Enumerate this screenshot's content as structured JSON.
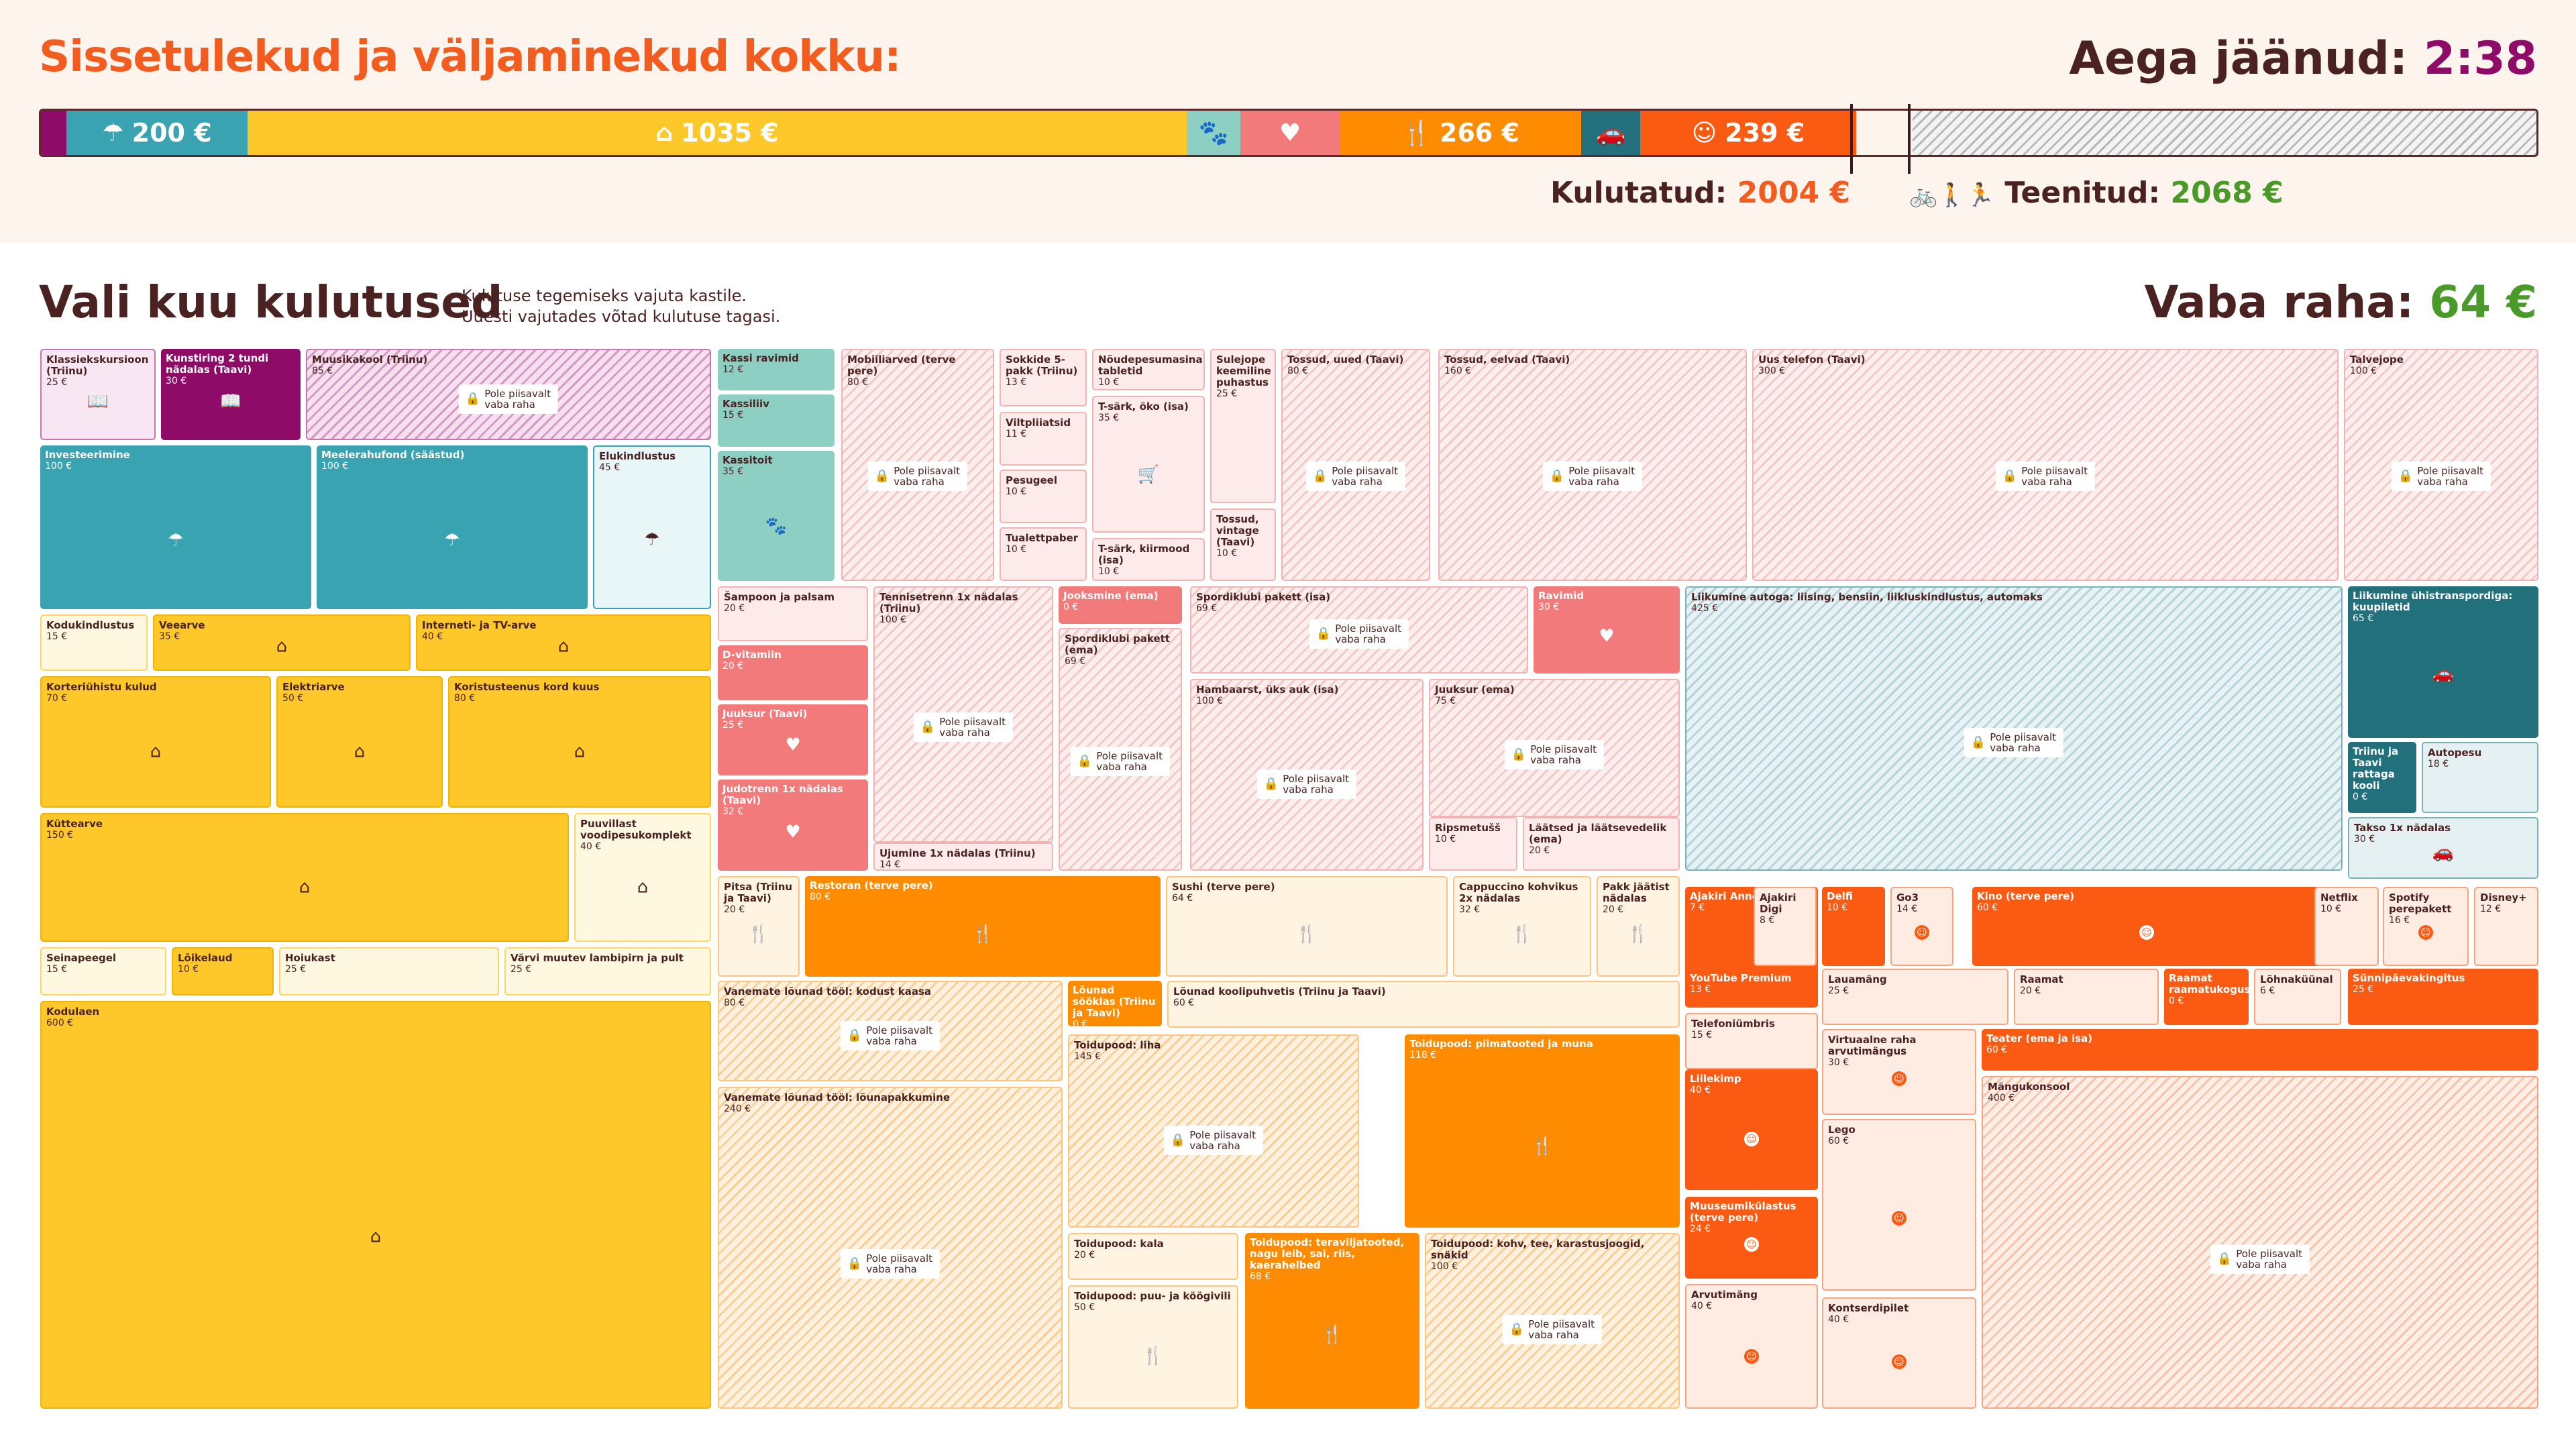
{
  "header": {
    "title": "Sissetulekud ja väljaminekud kokku:",
    "timer_label": "Aega jäänud:",
    "timer_value": "2:38",
    "spent_label": "Kulutatud:",
    "spent_value": "2004 €",
    "earned_label": "Teenitud:",
    "earned_value": "2068 €",
    "earned_icons": "🚲🚶🏃"
  },
  "budget_bar": [
    {
      "label": "",
      "icon": "",
      "color": "#8e0b67"
    },
    {
      "label": "200 €",
      "icon": "☂",
      "color": "#3aa3b2"
    },
    {
      "label": "1035 €",
      "icon": "⌂",
      "color": "#ffc82a"
    },
    {
      "label": "",
      "icon": "🐾",
      "color": "#8ecfc4"
    },
    {
      "label": "",
      "icon": "♥",
      "color": "#f37a7a"
    },
    {
      "label": "266 €",
      "icon": "🍴",
      "color": "#ff8c00"
    },
    {
      "label": "",
      "icon": "🚗",
      "color": "#21707c"
    },
    {
      "label": "239 €",
      "icon": "☺",
      "color": "#fb5a12"
    }
  ],
  "section": {
    "title": "Vali kuu kulutused",
    "hint_line1": "Kulutuse tegemiseks vajuta kastile.",
    "hint_line2": "Uuesti vajutades võtad kulutuse tagasi.",
    "free_label": "Vaba raha:",
    "free_value": "64 €"
  },
  "lock_text": "Pole piisavalt vaba raha",
  "colors": {
    "accent": "#f25c1f",
    "timer": "#8e0b67",
    "earned": "#4a9a2a",
    "text": "#4a2222"
  },
  "tiles": [
    {
      "n": "Klassiekskursioon (Triinu)",
      "p": "25 €",
      "c": "v-ed-l",
      "i": "📖"
    },
    {
      "n": "Kunstiring 2 tundi nädalas (Taavi)",
      "p": "30 €",
      "c": "v-ed",
      "i": "📖"
    },
    {
      "n": "Muusikakool (Triinu)",
      "p": "85 €",
      "c": "v-ed-h",
      "i": ""
    },
    {
      "n": "Investeerimine",
      "p": "100 €",
      "c": "v-sa",
      "i": "☂"
    },
    {
      "n": "Meelerahufond (säästud)",
      "p": "100 €",
      "c": "v-sa",
      "i": "☂"
    },
    {
      "n": "Elukindlustus",
      "p": "45 €",
      "c": "v-sa-l",
      "i": "☂"
    },
    {
      "n": "Kodukindlustus",
      "p": "15 €",
      "c": "v-ko-l",
      "i": ""
    },
    {
      "n": "Veearve",
      "p": "35 €",
      "c": "v-ko",
      "i": "⌂"
    },
    {
      "n": "Interneti- ja TV-arve",
      "p": "40 €",
      "c": "v-ko",
      "i": "⌂"
    },
    {
      "n": "Korteriühistu kulud",
      "p": "70 €",
      "c": "v-ko",
      "i": "⌂"
    },
    {
      "n": "Elektriarve",
      "p": "50 €",
      "c": "v-ko",
      "i": "⌂"
    },
    {
      "n": "Koristusteenus kord kuus",
      "p": "80 €",
      "c": "v-ko",
      "i": "⌂"
    },
    {
      "n": "Küttearve",
      "p": "150 €",
      "c": "v-ko",
      "i": "⌂"
    },
    {
      "n": "Puuvillast voodipesukomplekt",
      "p": "40 €",
      "c": "v-ko-l",
      "i": "⌂"
    },
    {
      "n": "Seinapeegel",
      "p": "15 €",
      "c": "v-ko-l",
      "i": ""
    },
    {
      "n": "Lõikelaud",
      "p": "10 €",
      "c": "v-ko",
      "i": ""
    },
    {
      "n": "Hoiukast",
      "p": "25 €",
      "c": "v-ko-l",
      "i": ""
    },
    {
      "n": "Värvi muutev lambipirn ja pult",
      "p": "25 €",
      "c": "v-ko-l",
      "i": ""
    },
    {
      "n": "Kodulaen",
      "p": "600 €",
      "c": "v-ko",
      "i": "⌂"
    },
    {
      "n": "Kassi ravimid",
      "p": "12 €",
      "c": "v-lo",
      "i": ""
    },
    {
      "n": "Kassiliiv",
      "p": "15 €",
      "c": "v-lo",
      "i": ""
    },
    {
      "n": "Kassitoit",
      "p": "35 €",
      "c": "v-lo",
      "i": "🐾"
    },
    {
      "n": "Mobiiliarved (terve pere)",
      "p": "80 €",
      "c": "v-te-h",
      "i": ""
    },
    {
      "n": "Sokkide 5-pakk (Triinu)",
      "p": "13 €",
      "c": "v-te-l",
      "i": ""
    },
    {
      "n": "Viltpliiatsid",
      "p": "11 €",
      "c": "v-te-l",
      "i": ""
    },
    {
      "n": "Pesugeel",
      "p": "10 €",
      "c": "v-te-l",
      "i": ""
    },
    {
      "n": "Tualettpaber",
      "p": "10 €",
      "c": "v-te-l",
      "i": ""
    },
    {
      "n": "Nõudepesumasina tabletid",
      "p": "10 €",
      "c": "v-te-l",
      "i": ""
    },
    {
      "n": "T-särk, öko (isa)",
      "p": "35 €",
      "c": "v-te-l",
      "i": "🛒"
    },
    {
      "n": "T-särk, kiirmood (isa)",
      "p": "10 €",
      "c": "v-te-l",
      "i": ""
    },
    {
      "n": "Sulejope keemiline puhastus",
      "p": "25 €",
      "c": "v-te-l",
      "i": ""
    },
    {
      "n": "Tossud, vintage (Taavi)",
      "p": "10 €",
      "c": "v-te-l",
      "i": ""
    },
    {
      "n": "Tossud, uued (Taavi)",
      "p": "80 €",
      "c": "v-te-h",
      "i": ""
    },
    {
      "n": "Tossud, eelvad (Taavi)",
      "p": "160 €",
      "c": "v-te-h",
      "i": ""
    },
    {
      "n": "Uus telefon (Taavi)",
      "p": "300 €",
      "c": "v-te-h",
      "i": ""
    },
    {
      "n": "Talvejope",
      "p": "100 €",
      "c": "v-te-h",
      "i": ""
    },
    {
      "n": "Šampoon ja palsam",
      "p": "20 €",
      "c": "v-te-l",
      "i": ""
    },
    {
      "n": "D-vitamiin",
      "p": "20 €",
      "c": "v-te",
      "i": ""
    },
    {
      "n": "Juuksur (Taavi)",
      "p": "25 €",
      "c": "v-te",
      "i": "♥"
    },
    {
      "n": "Judotrenn 1x nädalas (Taavi)",
      "p": "32 €",
      "c": "v-te",
      "i": "♥"
    },
    {
      "n": "Tennisetrenn 1x nädalas (Triinu)",
      "p": "100 €",
      "c": "v-te-h",
      "i": ""
    },
    {
      "n": "Ujumine 1x nädalas (Triinu)",
      "p": "14 €",
      "c": "v-te-l",
      "i": ""
    },
    {
      "n": "Jooksmine (ema)",
      "p": "0 €",
      "c": "v-te",
      "i": ""
    },
    {
      "n": "Spordiklubi pakett (ema)",
      "p": "69 €",
      "c": "v-te-h",
      "i": ""
    },
    {
      "n": "Spordiklubi pakett (isa)",
      "p": "69 €",
      "c": "v-te-h",
      "i": ""
    },
    {
      "n": "Ravimid",
      "p": "30 €",
      "c": "v-te",
      "i": "♥"
    },
    {
      "n": "Hambaarst, üks auk (isa)",
      "p": "100 €",
      "c": "v-te-h",
      "i": ""
    },
    {
      "n": "Juuksur (ema)",
      "p": "75 €",
      "c": "v-te-h",
      "i": ""
    },
    {
      "n": "Ripsmetušš",
      "p": "10 €",
      "c": "v-te-l",
      "i": ""
    },
    {
      "n": "Läätsed ja läätsevedelik (ema)",
      "p": "20 €",
      "c": "v-te-l",
      "i": ""
    },
    {
      "n": "Liikumine autoga: liising, bensiin, liikluskindlustus, automaks",
      "p": "425 €",
      "c": "v-tr-h",
      "i": ""
    },
    {
      "n": "Liikumine ühistranspordiga: kuupiletid",
      "p": "65 €",
      "c": "v-tr",
      "i": "🚗"
    },
    {
      "n": "Triinu ja Taavi rattaga kooli",
      "p": "0 €",
      "c": "v-tr",
      "i": ""
    },
    {
      "n": "Autopesu",
      "p": "18 €",
      "c": "v-tr-l",
      "i": ""
    },
    {
      "n": "Takso 1x nädalas",
      "p": "30 €",
      "c": "v-tr-l",
      "i": "🚗"
    },
    {
      "n": "Pitsa (Triinu ja Taavi)",
      "p": "20 €",
      "c": "v-to-l",
      "i": "🍴"
    },
    {
      "n": "Restoran (terve pere)",
      "p": "80 €",
      "c": "v-to",
      "i": "🍴"
    },
    {
      "n": "Sushi (terve pere)",
      "p": "64 €",
      "c": "v-to-l",
      "i": "🍴"
    },
    {
      "n": "Cappuccino kohvikus 2x nädalas",
      "p": "32 €",
      "c": "v-to-l",
      "i": "🍴"
    },
    {
      "n": "Pakk jäätist nädalas",
      "p": "20 €",
      "c": "v-to-l",
      "i": "🍴"
    },
    {
      "n": "Vanemate lõunad tööl: kodust kaasa",
      "p": "80 €",
      "c": "v-to-h",
      "i": ""
    },
    {
      "n": "Lõunad sööklas (Triinu ja Taavi)",
      "p": "0 €",
      "c": "v-to",
      "i": ""
    },
    {
      "n": "Lõunad koolipuhvetis (Triinu ja Taavi)",
      "p": "60 €",
      "c": "v-to-l",
      "i": ""
    },
    {
      "n": "Vanemate lõunad tööl: lõunapakkumine",
      "p": "240 €",
      "c": "v-to-h",
      "i": ""
    },
    {
      "n": "Toidupood: liha",
      "p": "145 €",
      "c": "v-to-h",
      "i": ""
    },
    {
      "n": "Toidupood: piimatooted ja muna",
      "p": "118 €",
      "c": "v-to",
      "i": "🍴"
    },
    {
      "n": "Toidupood: kala",
      "p": "20 €",
      "c": "v-to-l",
      "i": ""
    },
    {
      "n": "Toidupood: puu- ja köögivili",
      "p": "50 €",
      "c": "v-to-l",
      "i": "🍴"
    },
    {
      "n": "Toidupood: teraviljatooted, nagu leib, sai, riis, kaerahelbed",
      "p": "68 €",
      "c": "v-to",
      "i": "🍴"
    },
    {
      "n": "Toidupood: kohv, tee, karastusjoogid, snäkid",
      "p": "100 €",
      "c": "v-to-h",
      "i": ""
    },
    {
      "n": "Ajakiri Anne & Stiil",
      "p": "7 €",
      "c": "v-me",
      "i": ""
    },
    {
      "n": "Ajakiri Digi",
      "p": "8 €",
      "c": "v-me-l",
      "i": ""
    },
    {
      "n": "Delfi",
      "p": "10 €",
      "c": "v-me",
      "i": ""
    },
    {
      "n": "Go3",
      "p": "14 €",
      "c": "v-me-l",
      "i": "☺"
    },
    {
      "n": "Kino (terve pere)",
      "p": "60 €",
      "c": "v-me",
      "i": "☺"
    },
    {
      "n": "Netflix",
      "p": "10 €",
      "c": "v-me-l",
      "i": ""
    },
    {
      "n": "Spotify perepakett",
      "p": "16 €",
      "c": "v-me-l",
      "i": "☺"
    },
    {
      "n": "Disney+",
      "p": "12 €",
      "c": "v-me-l",
      "i": ""
    },
    {
      "n": "YouTube Premium",
      "p": "13 €",
      "c": "v-me",
      "i": ""
    },
    {
      "n": "Lauamäng",
      "p": "25 €",
      "c": "v-me-l",
      "i": ""
    },
    {
      "n": "Raamat",
      "p": "20 €",
      "c": "v-me-l",
      "i": ""
    },
    {
      "n": "Raamat raamatukogust",
      "p": "0 €",
      "c": "v-me",
      "i": ""
    },
    {
      "n": "Lõhnaküünal",
      "p": "6 €",
      "c": "v-me-l",
      "i": ""
    },
    {
      "n": "Sünnipäevakingitus",
      "p": "25 €",
      "c": "v-me",
      "i": ""
    },
    {
      "n": "Telefoniümbris",
      "p": "15 €",
      "c": "v-me-l",
      "i": ""
    },
    {
      "n": "Virtuaalne raha arvutimängus",
      "p": "30 €",
      "c": "v-me-l",
      "i": "☺"
    },
    {
      "n": "Teater (ema ja isa)",
      "p": "60 €",
      "c": "v-me",
      "i": ""
    },
    {
      "n": "Liilekimp",
      "p": "40 €",
      "c": "v-me",
      "i": "☺"
    },
    {
      "n": "Lego",
      "p": "60 €",
      "c": "v-me-l",
      "i": "☺"
    },
    {
      "n": "Mängukonsool",
      "p": "400 €",
      "c": "v-me-h",
      "i": ""
    },
    {
      "n": "Muuseumikülastus (terve pere)",
      "p": "24 €",
      "c": "v-me",
      "i": "☺"
    },
    {
      "n": "Arvutimäng",
      "p": "40 €",
      "c": "v-me-l",
      "i": "☺"
    },
    {
      "n": "Kontserdipilet",
      "p": "40 €",
      "c": "v-me-l",
      "i": "☺"
    }
  ]
}
